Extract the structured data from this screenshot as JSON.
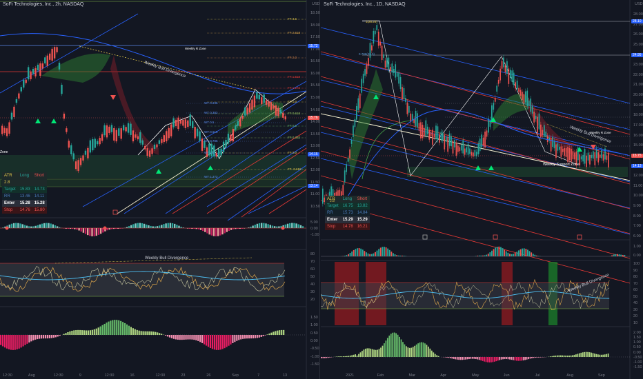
{
  "left": {
    "title": "SoFi Technologies, Inc., 2h, NASDAQ",
    "currency": "USD",
    "price_axis": [
      "18.50",
      "18.00",
      "17.50",
      "17.00",
      "16.50",
      "16.00",
      "15.50",
      "15.00",
      "14.50",
      "14.00",
      "13.50",
      "13.00",
      "12.50",
      "12.00",
      "11.50",
      "11.00",
      "10.50"
    ],
    "osc1_axis": [
      "5.00",
      "0.00",
      "-1.00"
    ],
    "osc2_axis": [
      "80",
      "70",
      "60",
      "50",
      "40",
      "30",
      "20"
    ],
    "osc3_axis": [
      "1.50",
      "1.00",
      "0.50",
      "0.00",
      "-0.50",
      "-1.00",
      "-1.50"
    ],
    "time_axis": [
      "12:30",
      "Aug",
      "12:30",
      "9",
      "12:30",
      "16",
      "12:30",
      "23",
      "26",
      "Sep",
      "7",
      "13"
    ],
    "price_tags": {
      "last": "15.76",
      "level_a": "15.72",
      "level_b": "14.15",
      "level_c": "13.14"
    },
    "annotations": {
      "weekly_zone": "Weekly R Zone",
      "bull_div_price": "Weekly Bull Divergence",
      "bull_div_osc": "Weekly Bull Divergence",
      "zone_cut": "Zone"
    },
    "fib_labels": [
      "FF 3.6",
      "FF 2.618",
      "FF 2.0",
      "FF 1.618",
      "FF 1.272",
      "FF 1.0",
      "FF 0.618",
      "FF 0.5",
      "FF 0.382",
      "FF 0.0",
      "FF -0.618"
    ],
    "fib_left_labels": [
      "WT 0.236",
      "WT 0.382",
      "WT 0.5",
      "WT 0.618",
      "WT 0.786",
      "WT 1.0",
      "WT 1.272"
    ],
    "table": {
      "atr_label": "ATR",
      "atr_value": "2.8",
      "long_hdr": "Long",
      "short_hdr": "Short",
      "target_label": "Target",
      "target_long": "15.83",
      "target_short": "14.73",
      "rr_label": "RR",
      "rr_long": "13.46",
      "rr_short": "14.11",
      "enter_label": "Enter",
      "enter_long": "15.28",
      "enter_short": "15.28",
      "stop_label": "Stop",
      "stop_long": "14.76",
      "stop_short": "15.80"
    }
  },
  "right": {
    "title": "SoFi Technologies, Inc., 1D, NASDAQ",
    "currency": "USD",
    "price_axis": [
      "28.00",
      "27.00",
      "26.00",
      "25.00",
      "24.00",
      "23.00",
      "22.00",
      "21.00",
      "20.00",
      "19.00",
      "18.00",
      "17.00",
      "16.00",
      "15.00",
      "14.00",
      "13.00",
      "12.00",
      "11.00",
      "10.00",
      "9.00",
      "8.00",
      "7.00",
      "6.00"
    ],
    "osc1_axis": [
      "1.00",
      "0.00"
    ],
    "osc2_axis": [
      "100",
      "90",
      "80",
      "70",
      "60",
      "50",
      "40",
      "30",
      "20",
      "10"
    ],
    "osc3_axis": [
      "2.00",
      "1.50",
      "1.00",
      "0.50",
      "0.00",
      "-0.50",
      "-1.00",
      "-1.50"
    ],
    "time_axis": [
      "2021",
      "Feb",
      "Mar",
      "Apr",
      "May",
      "Jun",
      "Jul",
      "Aug",
      "Sep"
    ],
    "price_tags": {
      "top": "28.10",
      "level_a": "24.95",
      "last": "15.75",
      "level_b": "14.13"
    },
    "annotations": {
      "weekly_zone": "Weekly R Zone",
      "bull_div_price": "Weekly Bull Divergence",
      "support_zone": "Weekly Support Zone",
      "bull_div_osc": "Weekly Bull Divergence",
      "fib_top": "1(28.26)",
      "fib_786": "0.786(25.0)"
    },
    "table": {
      "atr_label": "ATR",
      "atr_value": "2.8",
      "long_hdr": "Long",
      "short_hdr": "Short",
      "target_label": "Target",
      "target_long": "16.75",
      "target_short": "13.82",
      "rr_label": "RR",
      "rr_long": "15.73",
      "rr_short": "14.84",
      "enter_label": "Enter",
      "enter_long": "15.29",
      "enter_short": "15.29",
      "stop_label": "Stop",
      "stop_long": "14.78",
      "stop_short": "16.21"
    }
  },
  "colors": {
    "bg": "#131722",
    "up": "#26a69a",
    "down": "#ef5350",
    "fib_blue": "#2962ff",
    "fib_red": "#e53935",
    "zone_green": "#1b3b2c",
    "yellow": "#e0c64b",
    "cloud_green": "#2e7d32"
  }
}
